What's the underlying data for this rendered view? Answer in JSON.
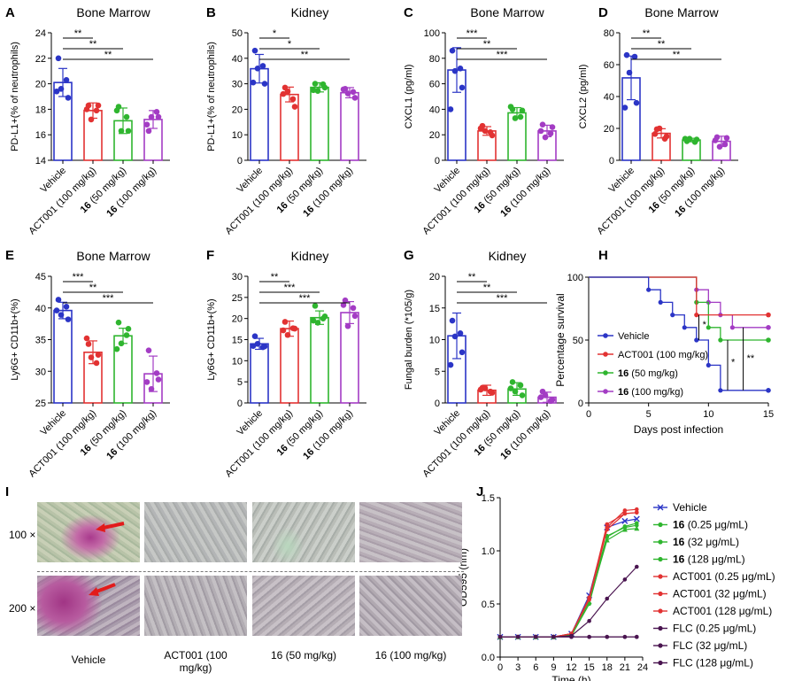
{
  "colors": {
    "vehicle": "#2b35c6",
    "act": "#e23232",
    "c50": "#2fb52f",
    "c100": "#a33cc4",
    "flc": "#4a1550",
    "dash": "#777777",
    "scale": "#333333"
  },
  "chart_data": [
    {
      "panel": "A",
      "type": "bar",
      "title": "Bone Marrow",
      "ylabel": "PD-L1+(% of neutrophils)",
      "ylim": [
        14,
        24
      ],
      "yticks": [
        14,
        16,
        18,
        20,
        22,
        24
      ],
      "categories": [
        "Vehicle",
        "ACT001 (100 mg/kg)",
        "16 (50 mg/kg)",
        "16 (100 mg/kg)"
      ],
      "values": [
        20.1,
        17.9,
        17.1,
        17.2
      ],
      "errors": [
        1.1,
        0.6,
        1.0,
        0.7
      ],
      "points": [
        [
          22.0,
          20.3,
          19.6,
          18.9,
          19.4
        ],
        [
          18.3,
          17.9,
          17.2,
          18.3,
          18.0
        ],
        [
          18.2,
          17.4,
          16.3,
          16.3,
          17.9
        ],
        [
          16.3,
          17.8,
          17.4,
          17.4,
          16.8
        ]
      ],
      "sig": [
        {
          "from": 0,
          "to": 1,
          "label": "**"
        },
        {
          "from": 0,
          "to": 2,
          "label": "**"
        },
        {
          "from": 0,
          "to": 3,
          "label": "**"
        }
      ]
    },
    {
      "panel": "B",
      "type": "bar",
      "title": "Kidney",
      "ylabel": "PD-L1+(% of neutrophils)",
      "ylim": [
        0,
        50
      ],
      "yticks": [
        0,
        10,
        20,
        30,
        40,
        50
      ],
      "categories": [
        "Vehicle",
        "ACT001 (100 mg/kg)",
        "16 (50 mg/kg)",
        "16 (100 mg/kg)"
      ],
      "values": [
        35.9,
        25.8,
        28.6,
        26.5
      ],
      "errors": [
        5.6,
        2.9,
        1.8,
        2.0
      ],
      "points": [
        [
          43,
          37,
          36,
          30,
          30.5
        ],
        [
          28.5,
          24,
          27,
          21,
          26
        ],
        [
          30,
          29.8,
          27.2,
          28.5,
          27.5
        ],
        [
          28,
          26.8,
          26.2,
          24.5,
          27.8
        ]
      ],
      "sig": [
        {
          "from": 0,
          "to": 1,
          "label": "*"
        },
        {
          "from": 0,
          "to": 2,
          "label": "*"
        },
        {
          "from": 0,
          "to": 3,
          "label": "**"
        }
      ]
    },
    {
      "panel": "C",
      "type": "bar",
      "title": "Bone Marrow",
      "ylabel": "CXCL1 (pg/ml)",
      "ylim": [
        0,
        100
      ],
      "yticks": [
        0,
        20,
        40,
        60,
        80,
        100
      ],
      "categories": [
        "Vehicle",
        "ACT001 (100 mg/kg)",
        "16 (50 mg/kg)",
        "16 (100 mg/kg)"
      ],
      "values": [
        70.8,
        23.0,
        37.2,
        23.0
      ],
      "errors": [
        17.5,
        3.4,
        4.1,
        4.5
      ],
      "points": [
        [
          86,
          72,
          70,
          57,
          40
        ],
        [
          27,
          22,
          23,
          19.5,
          25
        ],
        [
          40,
          34,
          33,
          39,
          42
        ],
        [
          28,
          21,
          18,
          26,
          23
        ]
      ],
      "sig": [
        {
          "from": 0,
          "to": 1,
          "label": "***"
        },
        {
          "from": 0,
          "to": 2,
          "label": "**"
        },
        {
          "from": 0,
          "to": 3,
          "label": "***"
        }
      ]
    },
    {
      "panel": "D",
      "type": "bar",
      "title": "Bone Marrow",
      "ylabel": "CXCL2 (pg/ml)",
      "ylim": [
        0,
        80
      ],
      "yticks": [
        0,
        20,
        40,
        60,
        80
      ],
      "categories": [
        "Vehicle",
        "ACT001 (100 mg/kg)",
        "16 (50 mg/kg)",
        "16 (100 mg/kg)"
      ],
      "values": [
        51.7,
        16.9,
        12.7,
        11.9
      ],
      "errors": [
        13.7,
        2.9,
        1.1,
        3.2
      ],
      "points": [
        [
          66,
          65,
          55,
          36,
          33
        ],
        [
          19.5,
          13.5,
          20,
          15,
          16.5
        ],
        [
          12,
          11.5,
          13.5,
          13,
          13.5
        ],
        [
          14.5,
          10,
          8.5,
          14,
          12.5
        ]
      ],
      "sig": [
        {
          "from": 0,
          "to": 1,
          "label": "**"
        },
        {
          "from": 0,
          "to": 2,
          "label": "**"
        },
        {
          "from": 0,
          "to": 3,
          "label": "**"
        }
      ]
    },
    {
      "panel": "E",
      "type": "bar",
      "title": "Bone Marrow",
      "ylabel": "Ly6G+ CD11b+(%)",
      "ylim": [
        25,
        45
      ],
      "yticks": [
        25,
        30,
        35,
        40,
        45
      ],
      "categories": [
        "Vehicle",
        "ACT001 (100 mg/kg)",
        "16 (50 mg/kg)",
        "16 (100 mg/kg)"
      ],
      "values": [
        39.6,
        33.0,
        35.6,
        29.6
      ],
      "errors": [
        1.3,
        1.8,
        1.2,
        2.8
      ],
      "points": [
        [
          41.3,
          40.2,
          38.9,
          38.2,
          39.6
        ],
        [
          34.3,
          31.3,
          32.2,
          32.6,
          35.2
        ],
        [
          37.7,
          35.7,
          34.4,
          36.7,
          33.5
        ],
        [
          33.3,
          29.7,
          27.2,
          28.7,
          28.3
        ]
      ],
      "sig": [
        {
          "from": 0,
          "to": 1,
          "label": "***"
        },
        {
          "from": 0,
          "to": 2,
          "label": "**"
        },
        {
          "from": 0,
          "to": 3,
          "label": "***"
        }
      ]
    },
    {
      "panel": "F",
      "type": "bar",
      "title": "Kidney",
      "ylabel": "Ly6G+ CD11b+(%)",
      "ylim": [
        0,
        30
      ],
      "yticks": [
        0,
        5,
        10,
        15,
        20,
        25,
        30
      ],
      "categories": [
        "Vehicle",
        "ACT001 (100 mg/kg)",
        "16 (50 mg/kg)",
        "16 (100 mg/kg)"
      ],
      "values": [
        14.0,
        17.6,
        20.2,
        21.4
      ],
      "errors": [
        1.3,
        1.8,
        1.6,
        2.6
      ],
      "points": [
        [
          15.8,
          13.2,
          14.0,
          13.4,
          13.5
        ],
        [
          19.2,
          17.7,
          16.1,
          17.6,
          17.2
        ],
        [
          23,
          20,
          19,
          20.5,
          19.5
        ],
        [
          24.3,
          22.5,
          18.2,
          20.6,
          23.2
        ]
      ],
      "sig": [
        {
          "from": 0,
          "to": 1,
          "label": "**"
        },
        {
          "from": 0,
          "to": 2,
          "label": "***"
        },
        {
          "from": 0,
          "to": 3,
          "label": "***"
        }
      ]
    },
    {
      "panel": "G",
      "type": "bar",
      "title": "Kidney",
      "ylabel": "Fungal burden (*105/g)",
      "ylim": [
        0,
        20
      ],
      "yticks": [
        0,
        5,
        10,
        15,
        20
      ],
      "categories": [
        "Vehicle",
        "ACT001 (100 mg/kg)",
        "16 (50 mg/kg)",
        "16 (100 mg/kg)"
      ],
      "values": [
        10.6,
        2.0,
        2.2,
        0.9
      ],
      "errors": [
        3.6,
        0.8,
        1.0,
        0.8
      ],
      "points": [
        [
          13,
          11,
          10.5,
          8,
          6
        ],
        [
          2.4,
          1.8,
          2.3,
          1.6,
          2.1
        ],
        [
          3.3,
          2.8,
          1.8,
          1.2,
          2.3
        ],
        [
          1.8,
          0.3,
          1.2,
          0.5,
          0.9
        ]
      ],
      "sig": [
        {
          "from": 0,
          "to": 1,
          "label": "**"
        },
        {
          "from": 0,
          "to": 2,
          "label": "**"
        },
        {
          "from": 0,
          "to": 3,
          "label": "***"
        }
      ]
    },
    {
      "panel": "H",
      "type": "line",
      "xlabel": "Days post infection",
      "ylabel": "Percentage survival",
      "xlim": [
        0,
        15
      ],
      "ylim": [
        0,
        100
      ],
      "xticks": [
        0,
        5,
        10,
        15
      ],
      "yticks": [
        0,
        50,
        100
      ],
      "series": [
        {
          "name": "Vehicle",
          "steps": [
            [
              0,
              100
            ],
            [
              5,
              100
            ],
            [
              5,
              90
            ],
            [
              6,
              90
            ],
            [
              6,
              80
            ],
            [
              7,
              80
            ],
            [
              7,
              70
            ],
            [
              8,
              70
            ],
            [
              8,
              60
            ],
            [
              9,
              60
            ],
            [
              9,
              50
            ],
            [
              10,
              50
            ],
            [
              10,
              30
            ],
            [
              11,
              30
            ],
            [
              11,
              10
            ],
            [
              15,
              10
            ]
          ]
        },
        {
          "name": "ACT001 (100 mg/kg)",
          "steps": [
            [
              0,
              100
            ],
            [
              9,
              100
            ],
            [
              9,
              70
            ],
            [
              15,
              70
            ]
          ]
        },
        {
          "name": "16 (50 mg/kg)",
          "steps": [
            [
              0,
              100
            ],
            [
              9,
              100
            ],
            [
              9,
              80
            ],
            [
              10,
              80
            ],
            [
              10,
              60
            ],
            [
              11,
              60
            ],
            [
              11,
              50
            ],
            [
              15,
              50
            ]
          ]
        },
        {
          "name": "16 (100 mg/kg)",
          "steps": [
            [
              0,
              100
            ],
            [
              9,
              100
            ],
            [
              9,
              90
            ],
            [
              10,
              90
            ],
            [
              10,
              80
            ],
            [
              11,
              80
            ],
            [
              11,
              70
            ],
            [
              12,
              70
            ],
            [
              12,
              60
            ],
            [
              15,
              60
            ]
          ]
        }
      ],
      "annotations": [
        "*",
        "*",
        "**"
      ]
    },
    {
      "panel": "I",
      "type": "table",
      "rows": [
        "100 ×",
        "200 ×"
      ],
      "columns": [
        "Vehicle",
        "ACT001 (100 mg/kg)",
        "16 (50 mg/kg)",
        "16 (100 mg/kg)"
      ]
    },
    {
      "panel": "J",
      "type": "line",
      "xlabel": "Time (h)",
      "ylabel": "OD595 (nm)",
      "xlim": [
        0,
        24
      ],
      "ylim": [
        0,
        1.5
      ],
      "xticks": [
        0,
        3,
        6,
        9,
        12,
        15,
        18,
        21,
        24
      ],
      "yticks": [
        0.0,
        0.5,
        1.0,
        1.5
      ],
      "x": [
        0,
        3,
        6,
        9,
        12,
        15,
        18,
        21,
        23
      ],
      "series": [
        {
          "name": "Vehicle",
          "values": [
            0.19,
            0.19,
            0.19,
            0.19,
            0.22,
            0.58,
            1.22,
            1.28,
            1.3
          ]
        },
        {
          "name": "16 (0.25 μg/mL)",
          "values": [
            0.19,
            0.19,
            0.19,
            0.19,
            0.21,
            0.55,
            1.14,
            1.22,
            1.24
          ]
        },
        {
          "name": "16 (32 μg/mL)",
          "values": [
            0.19,
            0.19,
            0.19,
            0.19,
            0.21,
            0.52,
            1.1,
            1.2,
            1.21
          ]
        },
        {
          "name": "16 (128 μg/mL)",
          "values": [
            0.19,
            0.19,
            0.19,
            0.19,
            0.2,
            0.5,
            1.13,
            1.23,
            1.26
          ]
        },
        {
          "name": "ACT001 (0.25 μg/mL)",
          "values": [
            0.19,
            0.19,
            0.19,
            0.19,
            0.22,
            0.54,
            1.2,
            1.35,
            1.36
          ]
        },
        {
          "name": "ACT001 (32 μg/mL)",
          "values": [
            0.19,
            0.19,
            0.19,
            0.19,
            0.22,
            0.55,
            1.22,
            1.38,
            1.39
          ]
        },
        {
          "name": "ACT001 (128 μg/mL)",
          "values": [
            0.19,
            0.19,
            0.19,
            0.19,
            0.22,
            0.56,
            1.25,
            1.35,
            1.36
          ]
        },
        {
          "name": "FLC (0.25 μg/mL)",
          "values": [
            0.19,
            0.19,
            0.19,
            0.19,
            0.2,
            0.34,
            0.55,
            0.73,
            0.85
          ]
        },
        {
          "name": "FLC (32 μg/mL)",
          "values": [
            0.19,
            0.19,
            0.19,
            0.19,
            0.19,
            0.19,
            0.19,
            0.19,
            0.19
          ]
        },
        {
          "name": "FLC (128 μg/mL)",
          "values": [
            0.19,
            0.19,
            0.19,
            0.19,
            0.19,
            0.19,
            0.19,
            0.19,
            0.19
          ]
        }
      ]
    }
  ]
}
